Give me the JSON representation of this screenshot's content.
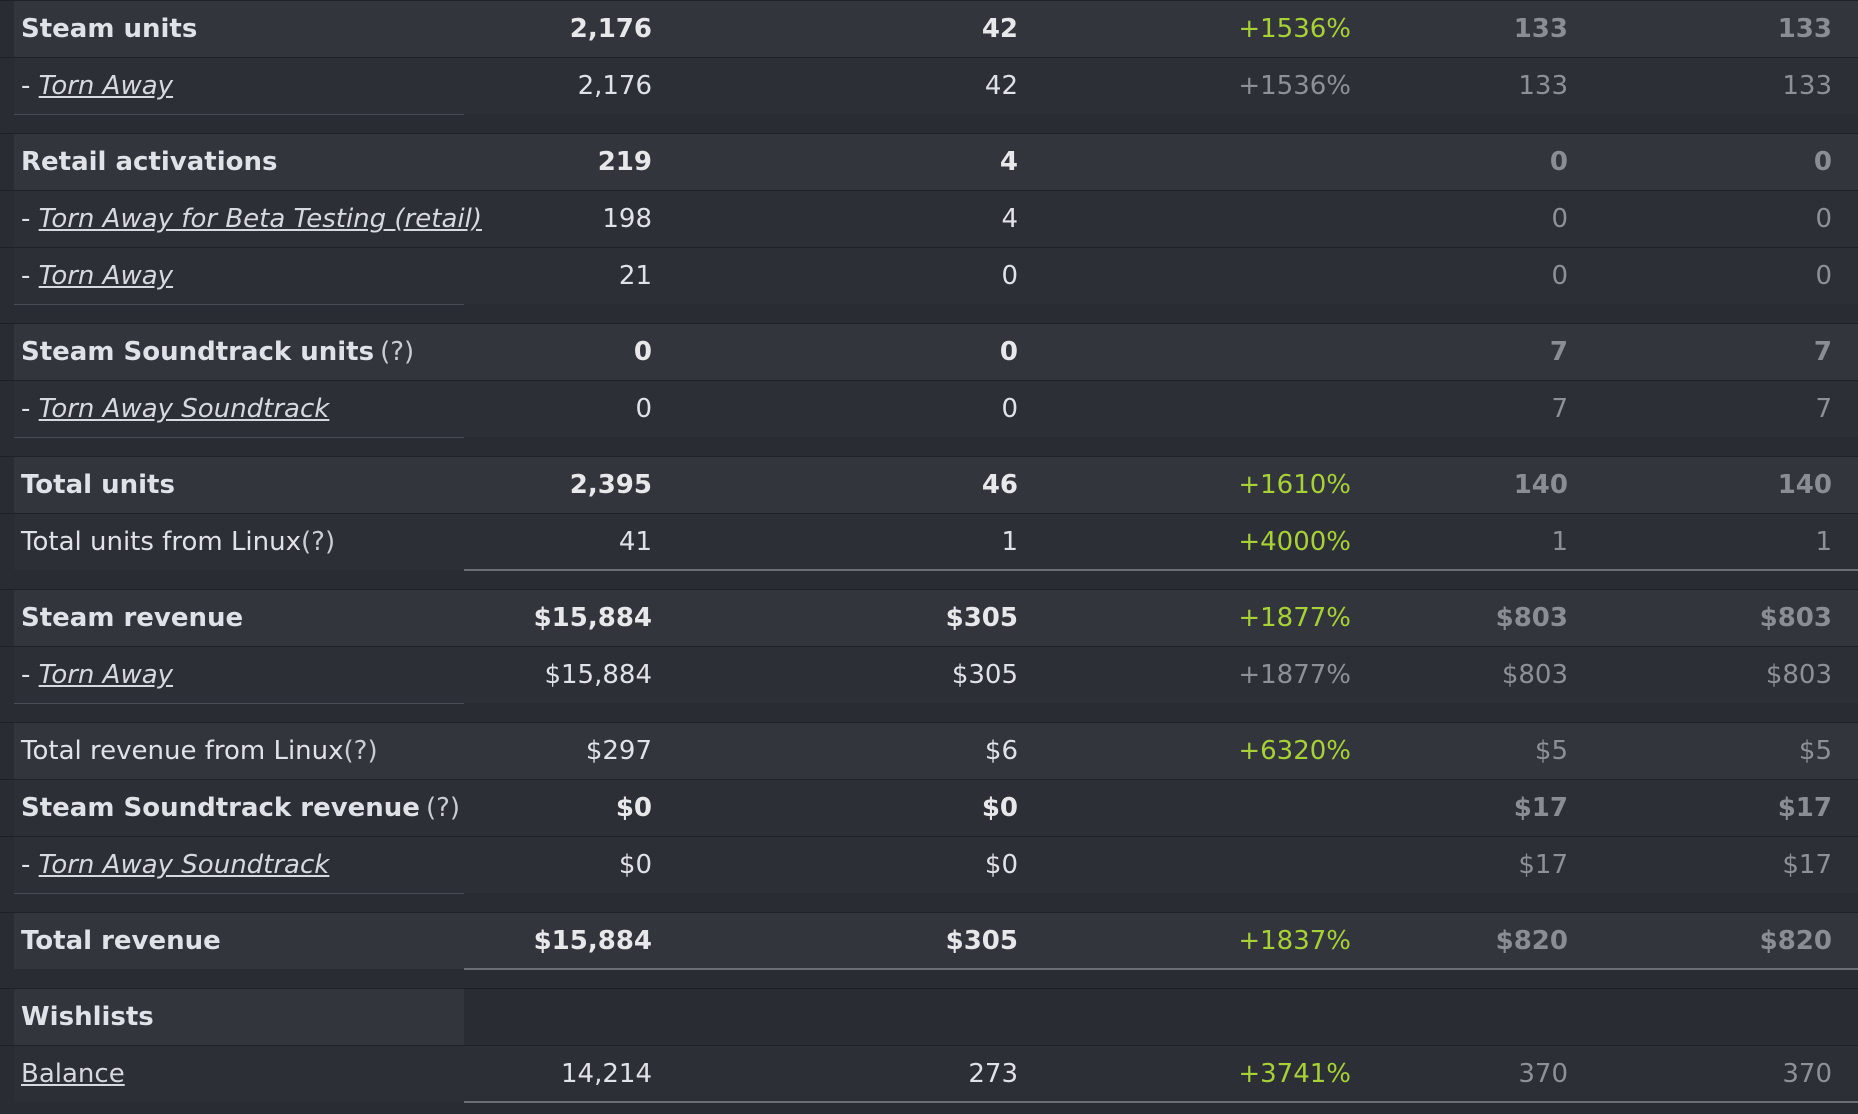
{
  "rows": [
    {
      "label": "Steam units",
      "v1": "2,176",
      "v2": "42",
      "pct": "+1536%",
      "v3": "133",
      "v4": "133"
    },
    {
      "label_prefix": "- ",
      "label": "Torn Away",
      "v1": "2,176",
      "v2": "42",
      "pct": "+1536%",
      "v3": "133",
      "v4": "133"
    },
    {
      "label": "Retail activations",
      "v1": "219",
      "v2": "4",
      "v3": "0",
      "v4": "0"
    },
    {
      "label_prefix": "- ",
      "label": "Torn Away for Beta Testing (retail)",
      "v1": "198",
      "v2": "4",
      "v3": "0",
      "v4": "0"
    },
    {
      "label_prefix": "- ",
      "label": "Torn Away",
      "v1": "21",
      "v2": "0",
      "v3": "0",
      "v4": "0"
    },
    {
      "label": "Steam Soundtrack units",
      "help": "(?)",
      "v1": "0",
      "v2": "0",
      "v3": "7",
      "v4": "7"
    },
    {
      "label_prefix": "- ",
      "label": "Torn Away Soundtrack",
      "v1": "0",
      "v2": "0",
      "v3": "7",
      "v4": "7"
    },
    {
      "label": "Total units",
      "v1": "2,395",
      "v2": "46",
      "pct": "+1610%",
      "v3": "140",
      "v4": "140"
    },
    {
      "label": "Total units from Linux",
      "help": "(?)",
      "v1": "41",
      "v2": "1",
      "pct": "+4000%",
      "v3": "1",
      "v4": "1"
    },
    {
      "label": "Steam revenue",
      "v1": "$15,884",
      "v2": "$305",
      "pct": "+1877%",
      "v3": "$803",
      "v4": "$803"
    },
    {
      "label_prefix": "- ",
      "label": "Torn Away",
      "v1": "$15,884",
      "v2": "$305",
      "pct": "+1877%",
      "v3": "$803",
      "v4": "$803"
    },
    {
      "label": "Total revenue from Linux",
      "help": "(?)",
      "v1": "$297",
      "v2": "$6",
      "pct": "+6320%",
      "v3": "$5",
      "v4": "$5"
    },
    {
      "label": "Steam Soundtrack revenue",
      "help": "(?)",
      "v1": "$0",
      "v2": "$0",
      "v3": "$17",
      "v4": "$17"
    },
    {
      "label_prefix": "- ",
      "label": "Torn Away Soundtrack",
      "v1": "$0",
      "v2": "$0",
      "v3": "$17",
      "v4": "$17"
    },
    {
      "label": "Total revenue",
      "v1": "$15,884",
      "v2": "$305",
      "pct": "+1837%",
      "v3": "$820",
      "v4": "$820"
    },
    {
      "label": "Wishlists"
    },
    {
      "label": "Balance",
      "v1": "14,214",
      "v2": "273",
      "pct": "+3741%",
      "v3": "370",
      "v4": "370"
    }
  ],
  "colors": {
    "background": "#2a2c33",
    "row_alt": "#33353d",
    "positive_pct": "#a7d134",
    "muted": "#8d9097"
  }
}
